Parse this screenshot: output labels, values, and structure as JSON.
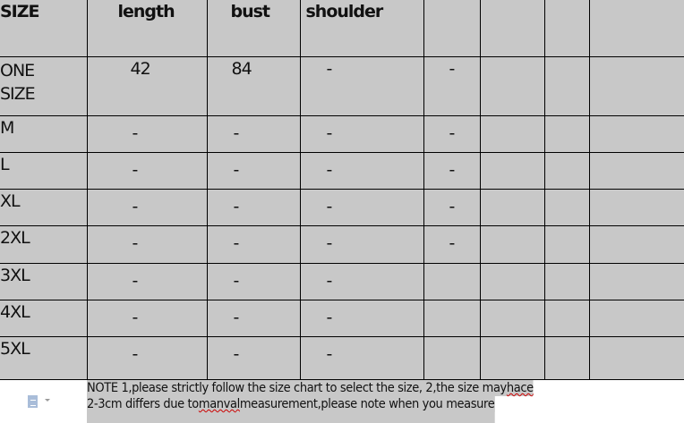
{
  "table": {
    "headers": [
      "SIZE",
      "length",
      "bust",
      "shoulder",
      "",
      "",
      "",
      ""
    ],
    "rows": [
      {
        "size": "ONE SIZE",
        "length": "42",
        "bust": "84",
        "shoulder": "-",
        "col5": "-"
      },
      {
        "size": "M",
        "length": "-",
        "bust": "-",
        "shoulder": "-",
        "col5": "-"
      },
      {
        "size": "L",
        "length": "-",
        "bust": "-",
        "shoulder": "-",
        "col5": "-"
      },
      {
        "size": "XL",
        "length": "-",
        "bust": "-",
        "shoulder": "-",
        "col5": "-"
      },
      {
        "size": "2XL",
        "length": "-",
        "bust": "-",
        "shoulder": "-",
        "col5": "-"
      },
      {
        "size": "3XL",
        "length": "-",
        "bust": "-",
        "shoulder": "-",
        "col5": ""
      },
      {
        "size": "4XL",
        "length": "-",
        "bust": "-",
        "shoulder": "-",
        "col5": ""
      },
      {
        "size": "5XL",
        "length": "-",
        "bust": "-",
        "shoulder": "-",
        "col5": ""
      }
    ],
    "background": "#c8c8c8"
  },
  "note": {
    "line1_a": "NOTE  1,please strictly follow the size chart to select the size,  2,the size may ",
    "line1_b": "hace",
    "line2_a": "2-3cm differs due to ",
    "line2_b": "manval",
    "line2_c": " measurement,please note when you measure"
  },
  "icons": {
    "paste_options": "paste-options-icon"
  }
}
